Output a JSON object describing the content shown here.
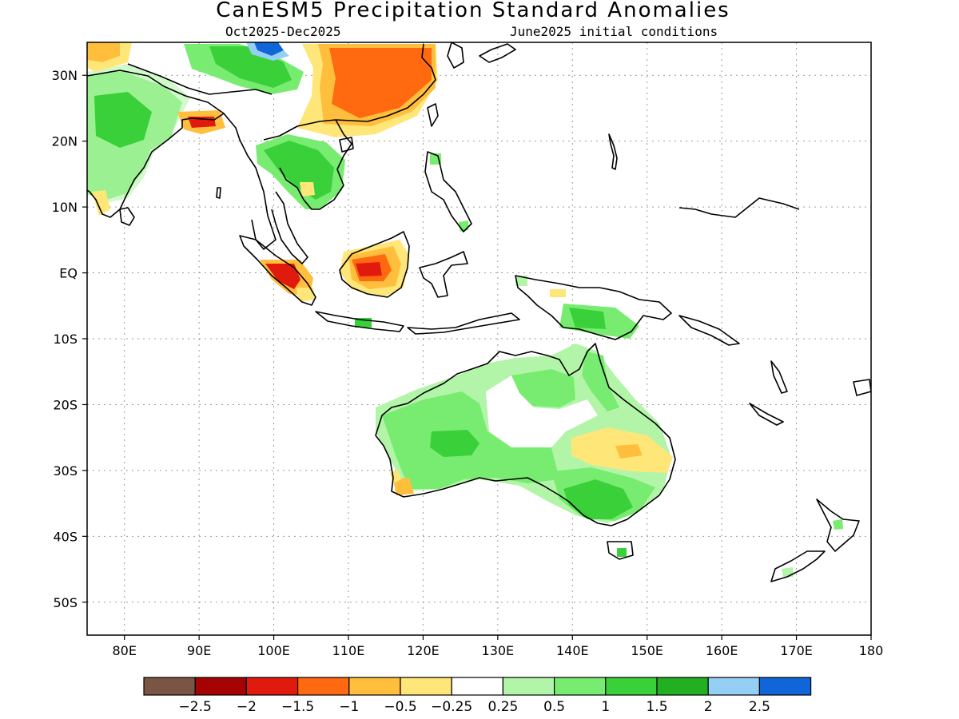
{
  "title": "CanESM5 Precipitation Standard Anomalies",
  "subtitle_left": "Oct2025-Dec2025",
  "subtitle_right": "June2025 initial conditions",
  "map": {
    "lon_range": [
      75,
      180
    ],
    "lat_range": [
      -55,
      35
    ],
    "lon_ticks": [
      {
        "value": 80,
        "label": "80E"
      },
      {
        "value": 90,
        "label": "90E"
      },
      {
        "value": 100,
        "label": "100E"
      },
      {
        "value": 110,
        "label": "110E"
      },
      {
        "value": 120,
        "label": "120E"
      },
      {
        "value": 130,
        "label": "130E"
      },
      {
        "value": 140,
        "label": "140E"
      },
      {
        "value": 150,
        "label": "150E"
      },
      {
        "value": 160,
        "label": "160E"
      },
      {
        "value": 170,
        "label": "170E"
      },
      {
        "value": 180,
        "label": "180"
      }
    ],
    "lat_ticks": [
      {
        "value": 30,
        "label": "30N"
      },
      {
        "value": 20,
        "label": "20N"
      },
      {
        "value": 10,
        "label": "10N"
      },
      {
        "value": 0,
        "label": "EQ"
      },
      {
        "value": -10,
        "label": "10S"
      },
      {
        "value": -20,
        "label": "20S"
      },
      {
        "value": -30,
        "label": "30S"
      },
      {
        "value": -40,
        "label": "40S"
      },
      {
        "value": -50,
        "label": "50S"
      }
    ],
    "grid": true,
    "grid_style": "dotted"
  },
  "colorbar": {
    "colors": [
      "#7a5546",
      "#a50303",
      "#e01a0d",
      "#ff6a10",
      "#ffbe3c",
      "#ffe678",
      "#ffffff",
      "#b3f5a8",
      "#78ec70",
      "#3ad03a",
      "#22b022",
      "#96cff6",
      "#1066d8"
    ],
    "labels": [
      "−2.5",
      "−2",
      "−1.5",
      "−1",
      "−0.5",
      "−0.25",
      "0.25",
      "0.5",
      "1",
      "1.5",
      "2",
      "2.5"
    ]
  }
}
